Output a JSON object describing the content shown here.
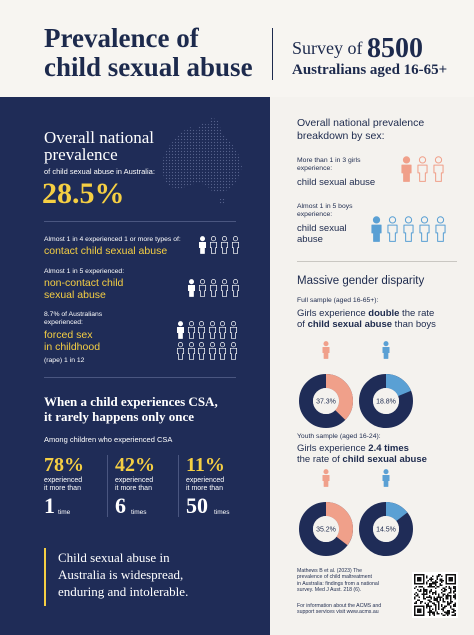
{
  "header": {
    "title_line1": "Prevalence of",
    "title_line2": "child sexual abuse",
    "survey_prefix": "Survey of",
    "survey_count": "8500",
    "survey_line2": "Australians aged 16-65+"
  },
  "overall": {
    "title_line1": "Overall national",
    "title_line2": "prevalence",
    "subtitle": "of child sexual abuse in Australia:",
    "percent": "28.5%"
  },
  "stats": [
    {
      "small": "Almost 1 in 4 experienced 1 or more types of:",
      "big": "contact child sexual abuse",
      "filled": 1,
      "total": 4
    },
    {
      "small": "Almost 1 in 5 experienced:",
      "big_line1": "non-contact child",
      "big_line2": "sexual abuse",
      "filled": 1,
      "total": 5
    },
    {
      "small_line1": "8.7% of Australians",
      "small_line2": "experienced:",
      "big_line1": "forced sex",
      "big_line2": "in childhood",
      "note": "(rape) 1 in 12",
      "filled": 1,
      "total": 12
    }
  ],
  "csa_once": {
    "title_line1": "When a child experiences CSA,",
    "title_line2": "it rarely happens only once",
    "subtitle": "Among children who experienced CSA",
    "columns": [
      {
        "percent": "78%",
        "desc_line1": "experienced",
        "desc_line2": "it more than",
        "number": "1",
        "unit": "time"
      },
      {
        "percent": "42%",
        "desc_line1": "experienced",
        "desc_line2": "it more than",
        "number": "6",
        "unit": "times"
      },
      {
        "percent": "11%",
        "desc_line1": "experienced",
        "desc_line2": "it more than",
        "number": "50",
        "unit": "times"
      }
    ]
  },
  "quote": {
    "line1": "Child sexual abuse in",
    "line2": "Australia is widespread,",
    "line3": "enduring and intolerable."
  },
  "by_sex": {
    "title_line1": "Overall national prevalence",
    "title_line2": "breakdown by sex:",
    "girls": {
      "small_line1": "More than 1 in 3 girls",
      "small_line2": "experience:",
      "big": "child sexual abuse",
      "filled": 1,
      "total": 3
    },
    "boys": {
      "small_line1": "Almost 1 in 5 boys",
      "small_line2": "experience:",
      "big_line1": "child sexual",
      "big_line2": "abuse",
      "filled": 1,
      "total": 5
    }
  },
  "disparity": {
    "title": "Massive gender disparity",
    "full": {
      "sample": "Full sample (aged 16-65+):",
      "text_a": "Girls experience ",
      "text_b": "double",
      "text_c": " the rate",
      "text_d": "of ",
      "text_e": "child sexual abuse",
      "text_f": " than boys",
      "girls_pct": "37.3%",
      "boys_pct": "18.8%",
      "girls_value": 37.3,
      "boys_value": 18.8
    },
    "youth": {
      "sample": "Youth sample (aged 16-24):",
      "text_a": "Girls experience ",
      "text_b": "2.4 times",
      "text_c": "the rate of ",
      "text_d": "child sexual abuse",
      "girls_pct": "35.2%",
      "boys_pct": "14.5%",
      "girls_value": 35.2,
      "boys_value": 14.5
    }
  },
  "footer": {
    "cite_1": "Mathews B et al. (2023) The",
    "cite_2": "prevalence of child maltreatment",
    "cite_3": "in Australia: findings from a national",
    "cite_4": "survey. Med J Aust. 218 (6).",
    "info_1": "For information about the ACMS and",
    "info_2": "support services visit www.acms.au"
  },
  "colors": {
    "navy": "#1f2c57",
    "yellow": "#f5cf43",
    "girl": "#f0a08a",
    "boy": "#5aa0d4"
  }
}
